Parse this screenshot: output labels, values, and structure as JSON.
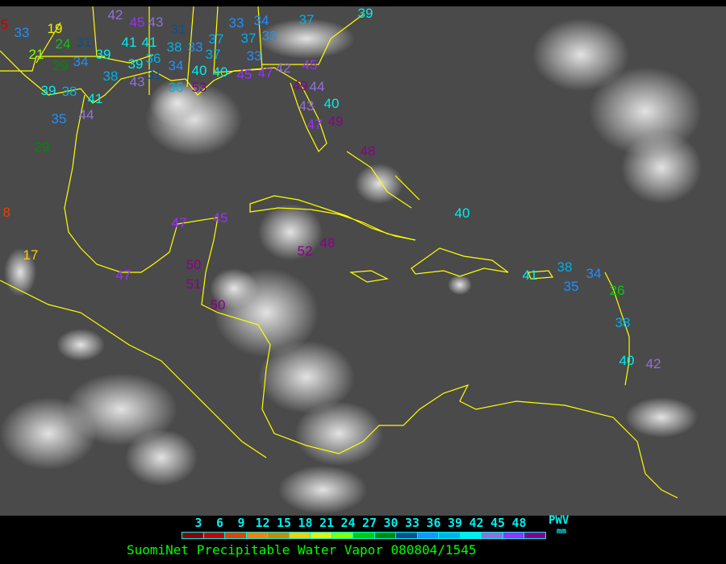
{
  "title": "SuomiNet Precipitable Water Vapor 080804/1545",
  "legend": {
    "unit_label": "PWV",
    "unit": "mm",
    "ticks": [
      "3",
      "6",
      "9",
      "12",
      "15",
      "18",
      "21",
      "24",
      "27",
      "30",
      "33",
      "36",
      "39",
      "42",
      "45",
      "48"
    ],
    "colors": [
      "#8b0000",
      "#cc0000",
      "#e84000",
      "#ff8000",
      "#cc8800",
      "#ffcc00",
      "#eeee00",
      "#88ff00",
      "#00cc00",
      "#008800",
      "#104e8b",
      "#1e90ff",
      "#00b0e8",
      "#00eeee",
      "#9370db",
      "#9b30ff",
      "#8b008b"
    ]
  },
  "map": {
    "coastline_color": "#ffff00"
  },
  "stations": [
    "5",
    "33",
    "19",
    "24",
    "21",
    "29",
    "31",
    "34",
    "39",
    "38",
    "41",
    "41",
    "39",
    "38",
    "33",
    "36",
    "34",
    "45",
    "42",
    "43",
    "37",
    "31",
    "37",
    "33",
    "34",
    "37",
    "33",
    "33",
    "43",
    "31",
    "36",
    "40",
    "40",
    "45",
    "47",
    "42",
    "53",
    "45",
    "49",
    "44",
    "43",
    "40",
    "47",
    "49",
    "37",
    "39",
    "39",
    "38",
    "41",
    "44",
    "35",
    "29",
    "8",
    "17",
    "47",
    "45",
    "47",
    "50",
    "51",
    "50",
    "52",
    "48",
    "48",
    "40",
    "41",
    "38",
    "35",
    "34",
    "26",
    "38",
    "40",
    "42"
  ]
}
